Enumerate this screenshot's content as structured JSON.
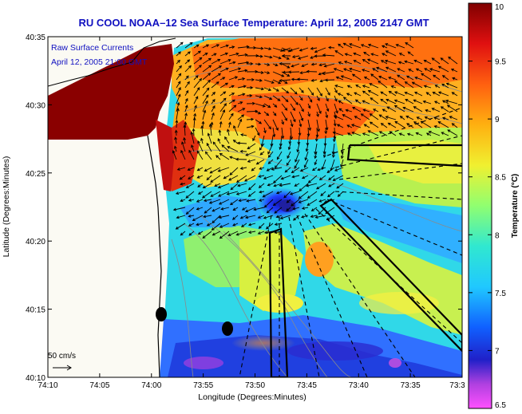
{
  "title": "RU COOL  NOAA–12  Sea Surface Temperature:  April 12, 2005 2147 GMT",
  "annotation": {
    "line1": "Raw Surface Currents",
    "line2": "April 12, 2005 21:00 GMT"
  },
  "scale_bar": {
    "label": "50 cm/s"
  },
  "axes": {
    "xlabel": "Longitude (Degrees:Minutes)",
    "ylabel": "Latitude (Degrees:Minutes)",
    "x_ticks": [
      "74:10",
      "74:05",
      "74:00",
      "73:55",
      "73:50",
      "73:45",
      "73:40",
      "73:35",
      "73:3"
    ],
    "y_ticks": [
      "40:35",
      "40:30",
      "40:25",
      "40:20",
      "40:15",
      "40:10"
    ]
  },
  "colorbar": {
    "label": "Temperature (°C)",
    "ticks": [
      "10",
      "9.5",
      "9",
      "8.5",
      "8",
      "7.5",
      "7",
      "6.5"
    ],
    "min": 6.5,
    "max": 10
  },
  "colors": {
    "title_text": "#1010c0",
    "land": "#fbfaf3",
    "frame": "#000000"
  }
}
